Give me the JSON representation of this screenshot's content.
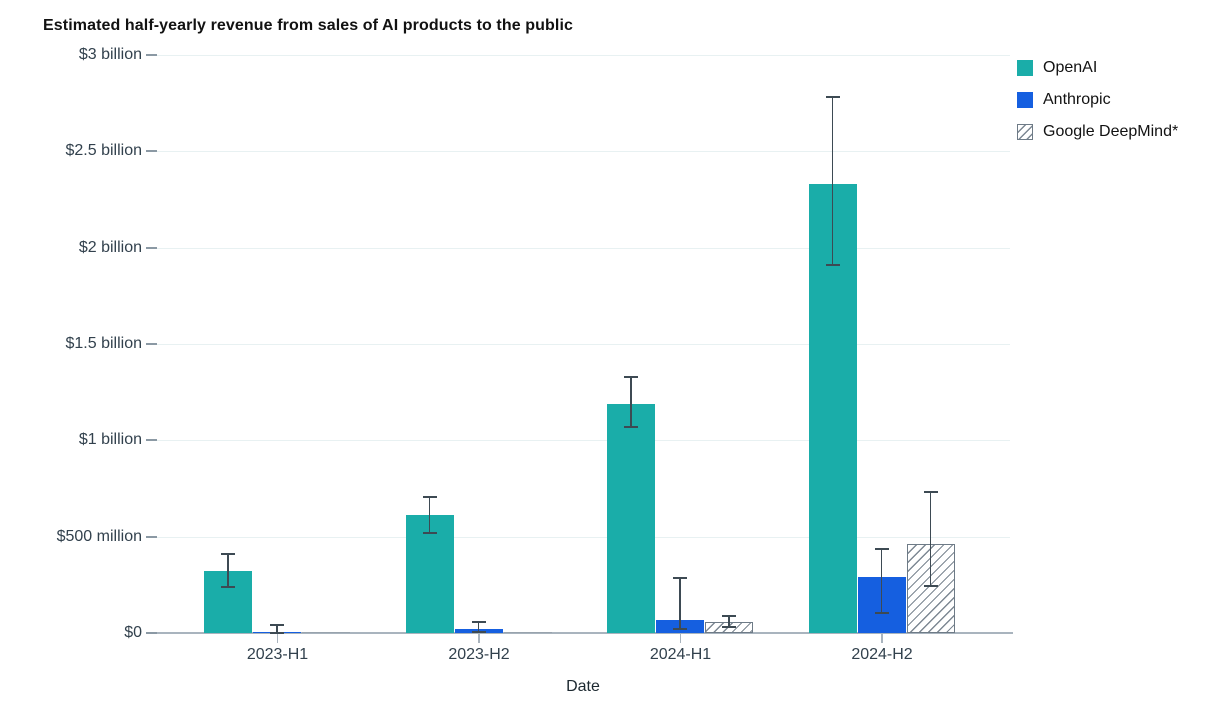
{
  "title": "Estimated half-yearly revenue from sales of AI products to the public",
  "x_axis_title": "Date",
  "colors": {
    "openai_teal": "#1aada9",
    "anthropic_blue": "#155fe0",
    "hatch_gray": "#7d8893",
    "error_bar": "#3d4a53",
    "gridline": "#e8f1f2",
    "axis_line": "#a9b4be",
    "tick_text": "#32414d",
    "title_text": "#121212"
  },
  "chart_data": {
    "type": "bar",
    "title": "Estimated half-yearly revenue from sales of AI products to the public",
    "xlabel": "Date",
    "ylabel": "",
    "unit": "USD millions",
    "grid": "horizontal",
    "legend_position": "top-right",
    "ylim": [
      0,
      3000
    ],
    "categories": [
      "2023-H1",
      "2023-H2",
      "2024-H1",
      "2024-H2"
    ],
    "yticks": [
      {
        "label": "$3 billion",
        "value": 3000
      },
      {
        "label": "$2.5 billion",
        "value": 2500
      },
      {
        "label": "$2 billion",
        "value": 2000
      },
      {
        "label": "$1.5 billion",
        "value": 1500
      },
      {
        "label": "$1 billion",
        "value": 1000
      },
      {
        "label": "$500 million",
        "value": 500
      },
      {
        "label": "$0",
        "value": 0
      }
    ],
    "series": [
      {
        "name": "OpenAI",
        "style": "solid",
        "color": "#1aada9",
        "values": [
          320,
          615,
          1190,
          2330
        ],
        "error_low": [
          240,
          520,
          1070,
          1910
        ],
        "error_high": [
          410,
          705,
          1330,
          2780
        ]
      },
      {
        "name": "Anthropic",
        "style": "solid",
        "color": "#155fe0",
        "values": [
          5,
          20,
          70,
          290
        ],
        "error_low": [
          1,
          5,
          20,
          105
        ],
        "error_high": [
          40,
          55,
          285,
          435
        ]
      },
      {
        "name": "Google DeepMind*",
        "style": "hatched",
        "color": "#ffffff",
        "values": [
          1,
          2,
          55,
          460
        ],
        "error_low": [
          null,
          null,
          33,
          245
        ],
        "error_high": [
          null,
          null,
          90,
          730
        ]
      }
    ]
  }
}
